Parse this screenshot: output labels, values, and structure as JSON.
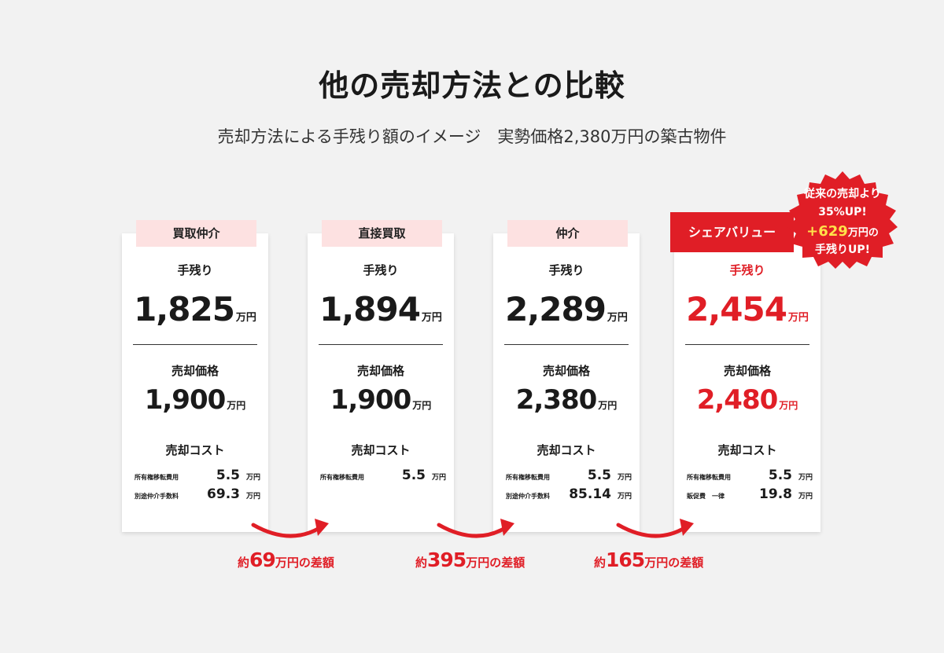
{
  "title": "他の売却方法との比較",
  "subtitle": "売却方法による手残り額のイメージ　実勢価格2,380万円の築古物件",
  "cards": [
    {
      "tab": "買取仲介",
      "net_label": "手残り",
      "net_value": "1,825",
      "unit": "万円",
      "price_label": "売却価格",
      "price_value": "1,900",
      "cost_label": "売却コスト",
      "costs": [
        {
          "label": "所有権移転費用",
          "value": "5.5"
        },
        {
          "label": "別途仲介手数料",
          "value": "69.3"
        }
      ]
    },
    {
      "tab": "直接買取",
      "net_label": "手残り",
      "net_value": "1,894",
      "unit": "万円",
      "price_label": "売却価格",
      "price_value": "1,900",
      "cost_label": "売却コスト",
      "costs": [
        {
          "label": "所有権移転費用",
          "value": "5.5"
        }
      ]
    },
    {
      "tab": "仲介",
      "net_label": "手残り",
      "net_value": "2,289",
      "unit": "万円",
      "price_label": "売却価格",
      "price_value": "2,380",
      "cost_label": "売却コスト",
      "costs": [
        {
          "label": "所有権移転費用",
          "value": "5.5"
        },
        {
          "label": "別途仲介手数料",
          "value": "85.14"
        }
      ]
    },
    {
      "tab": "シェアバリュー",
      "net_label": "手残り",
      "net_value": "2,454",
      "unit": "万円",
      "price_label": "売却価格",
      "price_value": "2,480",
      "cost_label": "売却コスト",
      "costs": [
        {
          "label": "所有権移転費用",
          "value": "5.5"
        },
        {
          "label": "販促費　一律",
          "value": "19.8"
        }
      ]
    }
  ],
  "differences": [
    {
      "prefix": "約",
      "value": "69",
      "suffix": "万円の差額"
    },
    {
      "prefix": "約",
      "value": "395",
      "suffix": "万円の差額"
    },
    {
      "prefix": "約",
      "value": "165",
      "suffix": "万円の差額"
    }
  ],
  "badge": {
    "line1": "従来の売却より",
    "line2": "35%UP!",
    "line3_value": "+629",
    "line3_suffix": "万円の",
    "line4": "手残りUP!"
  },
  "colors": {
    "accent": "#e01e26",
    "tab_pink": "#fde1e1",
    "badge_highlight": "#ffe14a",
    "background": "#f2f2f2"
  }
}
